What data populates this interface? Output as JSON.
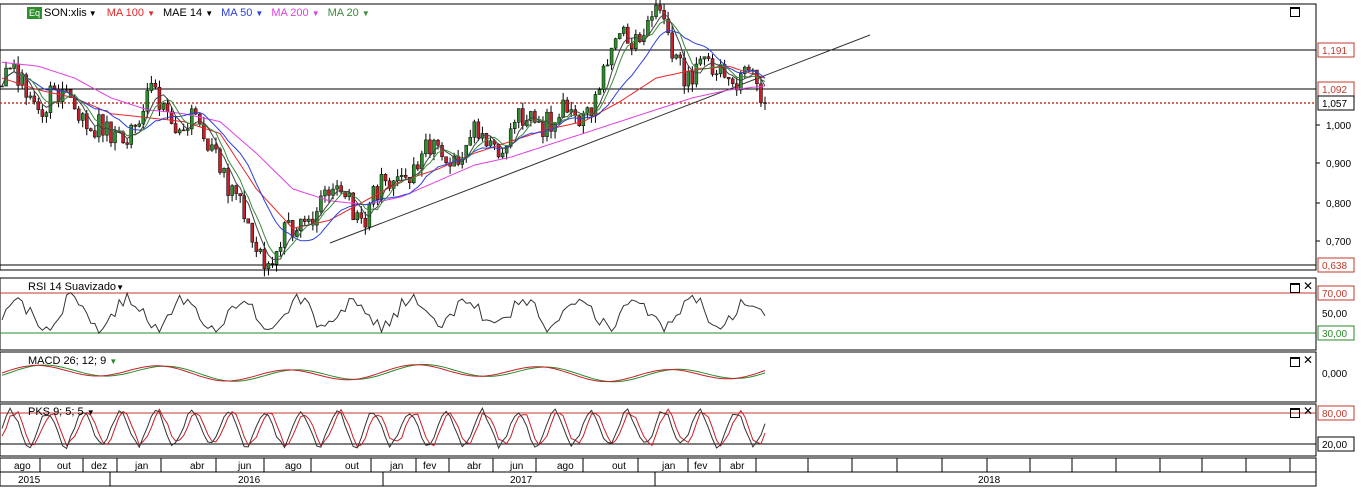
{
  "symbol": {
    "badge": "Eq",
    "name": "SON:xlis",
    "dropdown_icon": "triangle-down-icon"
  },
  "indicators": [
    {
      "label": "MA 100",
      "color": "#e8262a"
    },
    {
      "label": "MAE 14",
      "color": "#000000"
    },
    {
      "label": "MA 50",
      "color": "#2a3fe0"
    },
    {
      "label": "MA 200",
      "color": "#e040e0"
    },
    {
      "label": "MA 20",
      "color": "#3a8a3a"
    }
  ],
  "price_labels": [
    "1,191",
    "1,092",
    "1,057",
    "1,000",
    "0,900",
    "0,800",
    "0,700",
    "0,638"
  ],
  "rsi": {
    "label": "RSI 14 Suavizado",
    "levels": [
      "70,00",
      "50,00",
      "30,00"
    ]
  },
  "macd": {
    "label": "MACD 26; 12; 9",
    "levels": [
      "0,000"
    ]
  },
  "pks": {
    "label": "PKS 9; 5; 5",
    "levels": [
      "80,00",
      "20,00"
    ]
  },
  "months": [
    "ago",
    "out",
    "dez",
    "jan",
    "abr",
    "jun",
    "ago",
    "out",
    "jan",
    "fev",
    "abr",
    "jun",
    "ago",
    "out",
    "jan",
    "fev",
    "abr"
  ],
  "years": [
    "2015",
    "2016",
    "2017",
    "2018"
  ],
  "colors": {
    "up": "#2f8f2f",
    "down": "#c8202a",
    "level_red": "#c0392b",
    "level_green": "#2a8a2a"
  },
  "chart_data": {
    "type": "line",
    "title": "SON:xlis",
    "x": [
      "2015-08",
      "2015-10",
      "2015-12",
      "2016-01",
      "2016-03",
      "2016-04",
      "2016-06",
      "2016-08",
      "2016-10",
      "2016-12",
      "2017-01",
      "2017-02",
      "2017-04",
      "2017-06",
      "2017-08",
      "2017-10",
      "2017-12",
      "2018-01",
      "2018-02",
      "2018-03",
      "2018-04",
      "2018-05"
    ],
    "series": [
      {
        "name": "SON:xlis",
        "values": [
          1.13,
          1.07,
          1.06,
          0.95,
          1.06,
          1.02,
          0.92,
          0.67,
          0.72,
          0.84,
          0.79,
          0.89,
          0.93,
          0.96,
          0.98,
          1.03,
          1.02,
          1.23,
          1.27,
          1.12,
          1.15,
          1.057
        ]
      },
      {
        "name": "MA 100",
        "values": [
          1.12,
          1.09,
          1.07,
          1.03,
          1.02,
          1.01,
          0.98,
          0.84,
          0.74,
          0.76,
          0.81,
          0.86,
          0.89,
          0.93,
          0.96,
          0.99,
          1.01,
          1.06,
          1.12,
          1.14,
          1.15,
          1.12
        ]
      },
      {
        "name": "MA 200",
        "values": [
          1.16,
          1.15,
          1.12,
          1.07,
          1.04,
          1.03,
          1.01,
          0.93,
          0.84,
          0.81,
          0.8,
          0.82,
          0.86,
          0.9,
          0.92,
          0.95,
          0.98,
          1.01,
          1.04,
          1.07,
          1.09,
          1.1
        ]
      }
    ],
    "horizontal_levels": [
      1.191,
      1.092,
      1.057,
      0.638
    ],
    "ylim": [
      0.638,
      1.3
    ],
    "rsi_levels": [
      70,
      30
    ],
    "pks_levels": [
      80,
      20
    ]
  }
}
